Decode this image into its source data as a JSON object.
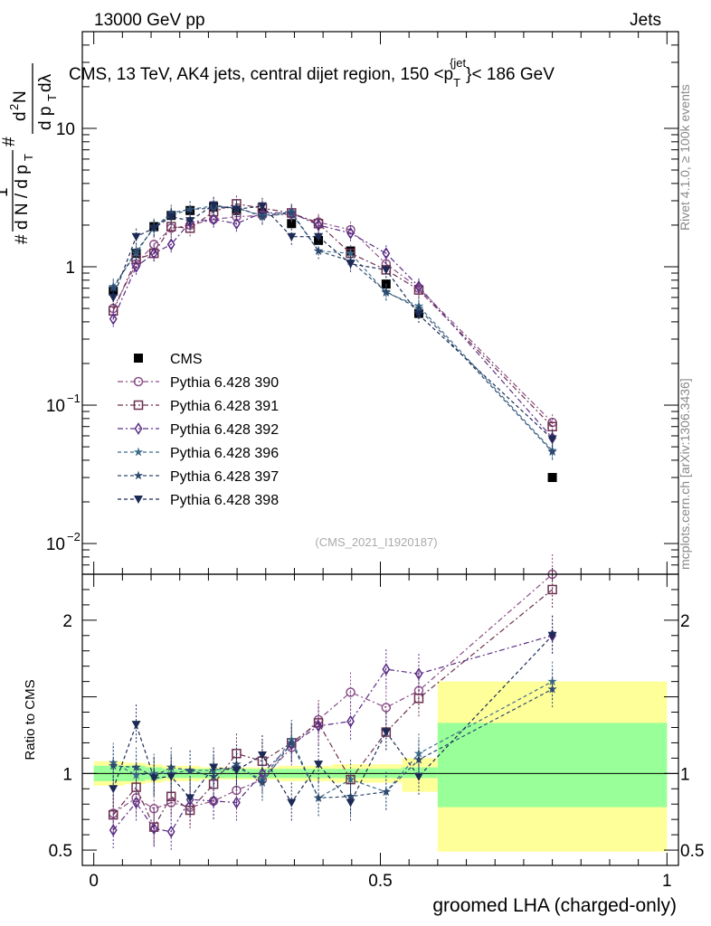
{
  "header": {
    "left": "13000 GeV pp",
    "right": "Jets"
  },
  "side_labels": {
    "rivet": "Rivet 4.1.0, ≥ 100k events",
    "mcplots": "mcplots.cern.ch [arXiv:1306.3436]"
  },
  "analysis_id": "(CMS_2021_I1920187)",
  "chart_data": [
    {
      "type": "line",
      "yscale": "log",
      "title": "CMS, 13 TeV, AK4 jets, central dijet region, 150 <p_T^{jet}< 186 GeV",
      "title_parts": {
        "main": "CMS, 13 TeV, AK4 jets, central dijet region, 150 <p",
        "sub": "T",
        "sup": "{jet",
        "end": "}< 186 GeV"
      },
      "xlabel": "",
      "ylabel": "1/(dN/dp_T) d²N/(dp_T dλ)",
      "xlim": [
        -0.02,
        1.02
      ],
      "ylim": [
        0.006,
        50
      ],
      "yticks": [
        {
          "v": 0.01,
          "label": "10",
          "sup": "−2"
        },
        {
          "v": 0.1,
          "label": "10",
          "sup": "−1"
        },
        {
          "v": 1,
          "label": "1",
          "sup": ""
        },
        {
          "v": 10,
          "label": "10",
          "sup": ""
        }
      ],
      "x": [
        0.034,
        0.074,
        0.105,
        0.135,
        0.168,
        0.209,
        0.249,
        0.294,
        0.345,
        0.392,
        0.448,
        0.51,
        0.567,
        0.8
      ],
      "series": [
        {
          "name": "CMS",
          "color": "#000000",
          "marker": "square-filled",
          "values": [
            0.67,
            1.25,
            1.95,
            2.35,
            2.55,
            2.7,
            2.55,
            2.45,
            2.05,
            1.55,
            1.3,
            0.75,
            0.46,
            0.03
          ]
        },
        {
          "name": "Pythia 6.428 390",
          "color": "#8a4f86",
          "marker": "circle-open",
          "dash": "6,3,2,3",
          "values": [
            0.5,
            1.05,
            1.45,
            1.9,
            2.0,
            2.2,
            2.3,
            2.35,
            2.4,
            2.1,
            1.85,
            1.05,
            0.7,
            0.075
          ]
        },
        {
          "name": "Pythia 6.428 391",
          "color": "#6e3050",
          "marker": "square-open",
          "dash": "6,3,2,3",
          "values": [
            0.48,
            1.13,
            1.25,
            1.95,
            1.9,
            2.5,
            2.85,
            2.65,
            2.45,
            2.05,
            1.25,
            0.95,
            0.68,
            0.07
          ]
        },
        {
          "name": "Pythia 6.428 392",
          "color": "#5b2d86",
          "marker": "diamond-open",
          "dash": "6,3,2,3",
          "values": [
            0.42,
            1.0,
            1.25,
            1.45,
            2.1,
            2.2,
            2.05,
            2.45,
            2.45,
            2.0,
            1.75,
            1.25,
            0.72,
            0.058
          ]
        },
        {
          "name": "Pythia 6.428 396",
          "color": "#3f6d8c",
          "marker": "star",
          "dash": "4,3",
          "values": [
            0.72,
            1.25,
            1.95,
            2.35,
            2.6,
            2.75,
            2.65,
            2.35,
            2.5,
            1.3,
            1.25,
            0.65,
            0.52,
            0.047
          ]
        },
        {
          "name": "Pythia 6.428 397",
          "color": "#2d4a70",
          "marker": "star",
          "dash": "4,3",
          "values": [
            0.7,
            1.3,
            1.9,
            2.45,
            2.6,
            2.65,
            2.7,
            2.3,
            2.45,
            1.3,
            1.1,
            0.66,
            0.5,
            0.046
          ]
        },
        {
          "name": "Pythia 6.428 398",
          "color": "#1c2a55",
          "marker": "triangle-down-filled",
          "dash": "4,3",
          "values": [
            0.6,
            1.65,
            1.9,
            2.3,
            2.15,
            2.8,
            2.6,
            2.75,
            1.65,
            1.65,
            1.05,
            0.95,
            0.45,
            0.057
          ]
        }
      ]
    },
    {
      "type": "line",
      "xlabel": "groomed LHA (charged-only)",
      "ylabel": "Ratio to CMS",
      "xlim": [
        -0.02,
        1.02
      ],
      "ylim": [
        0.4,
        2.3
      ],
      "yticks": [
        {
          "v": 0.5,
          "label": "0.5"
        },
        {
          "v": 1,
          "label": "1"
        },
        {
          "v": 2,
          "label": "2"
        }
      ],
      "xticks": [
        {
          "v": 0,
          "label": "0"
        },
        {
          "v": 0.5,
          "label": "0.5"
        },
        {
          "v": 1,
          "label": "1"
        }
      ],
      "uncertainty_bands": [
        {
          "x0": 0.0,
          "x1": 0.054,
          "green": [
            0.95,
            1.05
          ],
          "yellow": [
            0.92,
            1.08
          ]
        },
        {
          "x0": 0.054,
          "x1": 0.09,
          "green": [
            0.95,
            1.05
          ],
          "yellow": [
            0.93,
            1.07
          ]
        },
        {
          "x0": 0.09,
          "x1": 0.12,
          "green": [
            0.96,
            1.04
          ],
          "yellow": [
            0.94,
            1.06
          ]
        },
        {
          "x0": 0.12,
          "x1": 0.15,
          "green": [
            0.97,
            1.03
          ],
          "yellow": [
            0.95,
            1.05
          ]
        },
        {
          "x0": 0.15,
          "x1": 0.186,
          "green": [
            0.97,
            1.03
          ],
          "yellow": [
            0.95,
            1.05
          ]
        },
        {
          "x0": 0.186,
          "x1": 0.232,
          "green": [
            0.97,
            1.03
          ],
          "yellow": [
            0.96,
            1.04
          ]
        },
        {
          "x0": 0.232,
          "x1": 0.266,
          "green": [
            0.97,
            1.03
          ],
          "yellow": [
            0.96,
            1.04
          ]
        },
        {
          "x0": 0.266,
          "x1": 0.322,
          "green": [
            0.97,
            1.03
          ],
          "yellow": [
            0.96,
            1.04
          ]
        },
        {
          "x0": 0.322,
          "x1": 0.368,
          "green": [
            0.97,
            1.03
          ],
          "yellow": [
            0.95,
            1.05
          ]
        },
        {
          "x0": 0.368,
          "x1": 0.416,
          "green": [
            0.97,
            1.03
          ],
          "yellow": [
            0.95,
            1.05
          ]
        },
        {
          "x0": 0.416,
          "x1": 0.48,
          "green": [
            0.97,
            1.03
          ],
          "yellow": [
            0.94,
            1.06
          ]
        },
        {
          "x0": 0.48,
          "x1": 0.538,
          "green": [
            0.97,
            1.03
          ],
          "yellow": [
            0.94,
            1.06
          ]
        },
        {
          "x0": 0.538,
          "x1": 0.6,
          "green": [
            0.97,
            1.04
          ],
          "yellow": [
            0.88,
            1.1
          ]
        },
        {
          "x0": 0.6,
          "x1": 1.0,
          "green": [
            0.78,
            1.33
          ],
          "yellow": [
            0.49,
            1.6
          ]
        }
      ],
      "series": [
        {
          "name": "Pythia 6.428 390",
          "values": [
            0.74,
            0.84,
            0.77,
            0.81,
            0.78,
            0.82,
            0.89,
            0.96,
            1.17,
            1.35,
            1.53,
            1.43,
            1.54,
            2.3
          ]
        },
        {
          "name": "Pythia 6.428 391",
          "values": [
            0.73,
            0.91,
            0.65,
            0.85,
            0.76,
            0.93,
            1.13,
            1.08,
            1.2,
            1.33,
            0.96,
            1.27,
            1.49,
            2.2
          ]
        },
        {
          "name": "Pythia 6.428 392",
          "values": [
            0.63,
            0.81,
            0.64,
            0.62,
            0.83,
            0.82,
            0.81,
            1.0,
            1.19,
            1.31,
            1.34,
            1.68,
            1.65,
            1.9
          ]
        },
        {
          "name": "Pythia 6.428 396",
          "values": [
            1.07,
            0.99,
            1.0,
            1.0,
            1.02,
            1.02,
            1.04,
            0.96,
            1.22,
            0.84,
            0.96,
            0.88,
            1.13,
            1.6
          ]
        },
        {
          "name": "Pythia 6.428 397",
          "values": [
            1.05,
            1.04,
            0.98,
            1.04,
            1.02,
            0.98,
            1.06,
            0.94,
            1.2,
            0.84,
            0.85,
            0.88,
            1.09,
            1.55
          ]
        },
        {
          "name": "Pythia 6.428 398",
          "values": [
            0.9,
            1.32,
            0.97,
            0.98,
            0.84,
            1.04,
            1.02,
            1.12,
            0.81,
            1.06,
            0.81,
            1.27,
            0.98,
            1.9
          ]
        }
      ]
    }
  ]
}
